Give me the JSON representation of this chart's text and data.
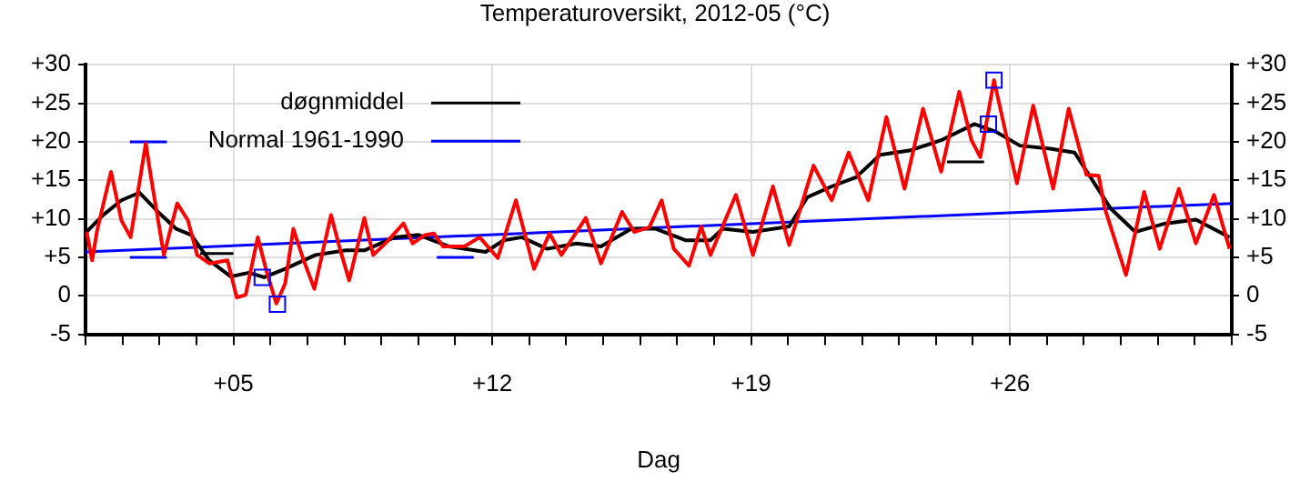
{
  "chart_data": {
    "type": "line",
    "title": "Temperaturoversikt, 2012-05 (°C)",
    "xlabel": "Dag",
    "xlim": [
      1,
      32
    ],
    "xticks": [
      {
        "value": 1,
        "label": null
      },
      {
        "value": 2,
        "label": null
      },
      {
        "value": 3,
        "label": null
      },
      {
        "value": 4,
        "label": null
      },
      {
        "value": 5,
        "label": "+05"
      },
      {
        "value": 6,
        "label": null
      },
      {
        "value": 7,
        "label": null
      },
      {
        "value": 8,
        "label": null
      },
      {
        "value": 9,
        "label": null
      },
      {
        "value": 10,
        "label": null
      },
      {
        "value": 11,
        "label": null
      },
      {
        "value": 12,
        "label": "+12"
      },
      {
        "value": 13,
        "label": null
      },
      {
        "value": 14,
        "label": null
      },
      {
        "value": 15,
        "label": null
      },
      {
        "value": 16,
        "label": null
      },
      {
        "value": 17,
        "label": null
      },
      {
        "value": 18,
        "label": null
      },
      {
        "value": 19,
        "label": "+19"
      },
      {
        "value": 20,
        "label": null
      },
      {
        "value": 21,
        "label": null
      },
      {
        "value": 22,
        "label": null
      },
      {
        "value": 23,
        "label": null
      },
      {
        "value": 24,
        "label": null
      },
      {
        "value": 25,
        "label": null
      },
      {
        "value": 26,
        "label": "+26"
      },
      {
        "value": 27,
        "label": null
      },
      {
        "value": 28,
        "label": null
      },
      {
        "value": 29,
        "label": null
      },
      {
        "value": 30,
        "label": null
      },
      {
        "value": 31,
        "label": null
      },
      {
        "value": 32,
        "label": null
      }
    ],
    "ylim": [
      -5,
      30
    ],
    "yticks": [
      -5,
      0,
      {
        "value": 5,
        "label": "+5"
      },
      {
        "value": 10,
        "label": "+10"
      },
      {
        "value": 15,
        "label": "+15"
      },
      {
        "value": 20,
        "label": "+20"
      },
      {
        "value": 25,
        "label": "+25"
      },
      {
        "value": 30,
        "label": "+30"
      }
    ],
    "y2lim": [
      -5,
      30
    ],
    "y2ticks": [
      -5,
      0,
      {
        "value": 5,
        "label": "+5"
      },
      {
        "value": 10,
        "label": "+10"
      },
      {
        "value": 15,
        "label": "+15"
      },
      {
        "value": 20,
        "label": "+20"
      },
      {
        "value": 25,
        "label": "+25"
      },
      {
        "value": 30,
        "label": "+30"
      }
    ],
    "grid": true,
    "legend": "top left",
    "marker": "none",
    "series": [
      {
        "color": "#ff0000",
        "x": [
          1.03,
          1.18,
          1.31,
          1.69,
          1.97,
          2.22,
          2.63,
          2.76,
          3.12,
          3.48,
          3.77,
          4.02,
          4.35,
          4.84,
          5.09,
          5.33,
          5.66,
          5.9,
          6.16,
          6.4,
          6.62,
          6.9,
          7.19,
          7.64,
          7.88,
          8.13,
          8.54,
          8.78,
          9.11,
          9.6,
          9.85,
          10.18,
          10.42,
          10.67,
          11.25,
          11.66,
          12.15,
          12.64,
          13.13,
          13.55,
          13.87,
          14.53,
          14.94,
          15.51,
          15.84,
          16.25,
          16.58,
          16.91,
          17.32,
          17.65,
          17.9,
          18.59,
          19.05,
          19.59,
          20.03,
          20.69,
          21.18,
          21.64,
          22.17,
          22.66,
          23.15,
          23.65,
          24.14,
          24.63,
          24.96,
          25.2,
          25.57,
          26.19,
          26.63,
          27.17,
          27.59,
          28.07,
          28.4,
          28.57,
          29.14,
          29.63,
          30.05,
          30.57,
          31.03,
          31.52,
          31.94
        ],
        "values": [
          8.3,
          4.6,
          8.4,
          16.1,
          9.8,
          7.6,
          19.8,
          15.7,
          5.3,
          12,
          9.8,
          5.3,
          4.2,
          4.6,
          -0.2,
          0.1,
          7.6,
          3.1,
          -1,
          1.6,
          8.7,
          4.6,
          0.9,
          10.5,
          6.1,
          2,
          10.1,
          5.3,
          6.8,
          9.4,
          6.8,
          7.9,
          8.1,
          6.4,
          6.4,
          7.6,
          4.9,
          12.4,
          3.5,
          8.1,
          5.3,
          10.1,
          4.2,
          10.9,
          8.3,
          8.9,
          12.4,
          6.1,
          3.9,
          9,
          5.3,
          13.1,
          5.3,
          14.2,
          6.6,
          16.9,
          12.4,
          18.6,
          12.4,
          23.2,
          13.9,
          24.3,
          16.1,
          26.5,
          20.2,
          18,
          28,
          14.6,
          24.7,
          13.9,
          24.3,
          15.7,
          15.6,
          11.3,
          2.7,
          13.5,
          6.1,
          13.9,
          6.8,
          13.1,
          6.1
        ]
      },
      {
        "name": "døgnmiddel",
        "color": "#000000",
        "x": [
          1.03,
          1.48,
          1.97,
          2.46,
          2.96,
          3.45,
          3.86,
          4.35,
          4.93,
          5.42,
          5.83,
          6.4,
          7.22,
          8.04,
          8.54,
          9.36,
          10.01,
          10.84,
          11.82,
          12.31,
          12.8,
          13.48,
          14.28,
          14.94,
          15.76,
          16.42,
          17.24,
          17.9,
          18.23,
          19.05,
          20.03,
          20.52,
          21.18,
          21.84,
          22.49,
          23.32,
          24.14,
          25.04,
          25.62,
          26.27,
          27.09,
          27.75,
          28.73,
          29.39,
          30.21,
          31.03,
          31.94
        ],
        "values": [
          8.3,
          10.5,
          12.4,
          13.4,
          10.9,
          8.7,
          7.9,
          4.6,
          2.5,
          3,
          2.4,
          3.5,
          5.3,
          5.9,
          5.9,
          7.6,
          7.9,
          6.4,
          5.7,
          7.2,
          7.6,
          6.1,
          6.8,
          6.4,
          8.7,
          8.7,
          7.2,
          7.2,
          8.7,
          8.3,
          9,
          12.8,
          14.2,
          15.4,
          18.3,
          18.9,
          20.2,
          22.3,
          21.3,
          19.5,
          19.1,
          18.6,
          11.3,
          8.3,
          9.4,
          9.9,
          7.6
        ]
      },
      {
        "name": "Normal 1961-1990",
        "color": "#0000ff",
        "x": [
          1,
          32
        ],
        "values": [
          5.7,
          12
        ]
      },
      {
        "color": "#0000ff",
        "x": [
          2.2,
          3.2
        ],
        "values": [
          20,
          20
        ]
      },
      {
        "color": "#0000ff",
        "x": [
          2.2,
          3.2
        ],
        "values": [
          5,
          5
        ]
      },
      {
        "color": "#0000ff",
        "x": [
          10.5,
          11.5
        ],
        "values": [
          5,
          5
        ]
      },
      {
        "color": "#000000",
        "x": [
          4.1,
          5
        ],
        "values": [
          5.5,
          5.5
        ]
      },
      {
        "color": "#000000",
        "x": [
          24.3,
          25.3
        ],
        "values": [
          17.4,
          17.4
        ]
      },
      {
        "type": "scatter",
        "marker": "square",
        "color": "#0000ff",
        "x": [
          5.78,
          6.19,
          25.42,
          25.57
        ],
        "values": [
          2.4,
          -1.1,
          22.3,
          28
        ]
      }
    ]
  }
}
